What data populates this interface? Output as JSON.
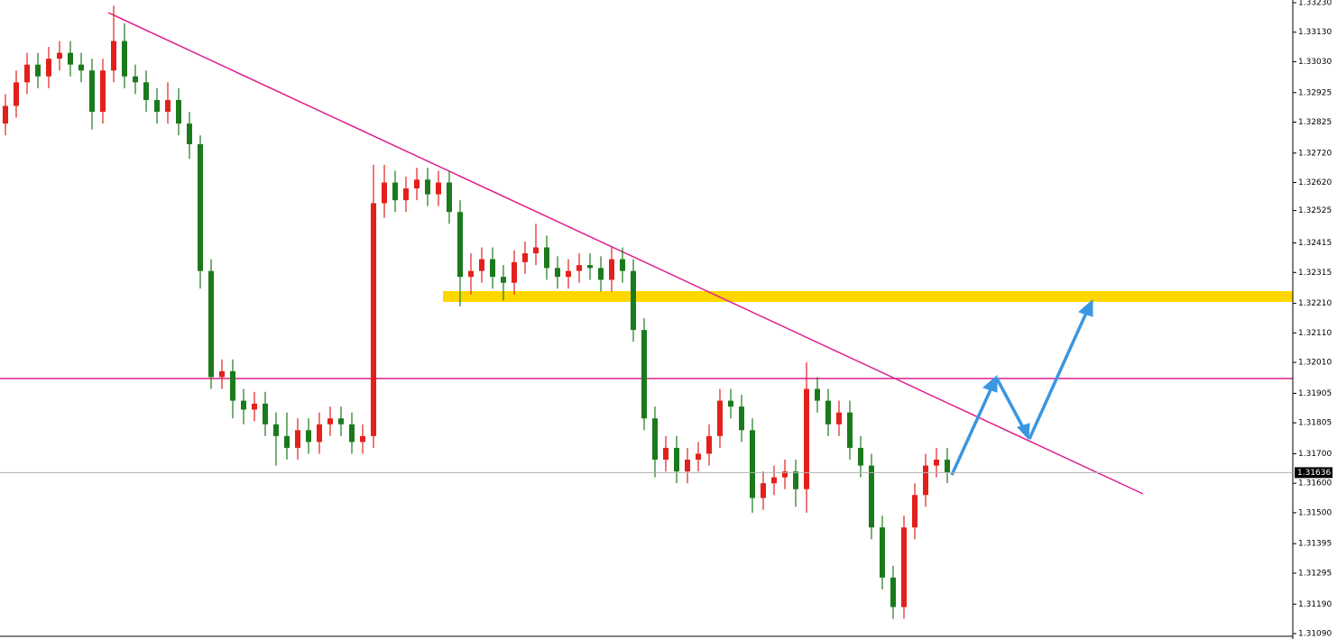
{
  "chart_data": {
    "type": "candlestick",
    "up_color": "#e3201b",
    "down_color": "#1b7a1b",
    "last_price": 1.31636,
    "ylim": [
      1.3109,
      1.3323
    ],
    "yticks": [
      {
        "value": 1.3323,
        "label": "1.33230"
      },
      {
        "value": 1.3313,
        "label": "1.33130"
      },
      {
        "value": 1.3303,
        "label": "1.33030"
      },
      {
        "value": 1.32925,
        "label": "1.32925"
      },
      {
        "value": 1.32825,
        "label": "1.32825"
      },
      {
        "value": 1.3272,
        "label": "1.32720"
      },
      {
        "value": 1.3262,
        "label": "1.32620"
      },
      {
        "value": 1.32525,
        "label": "1.32525"
      },
      {
        "value": 1.32415,
        "label": "1.32415"
      },
      {
        "value": 1.32315,
        "label": "1.32315"
      },
      {
        "value": 1.3221,
        "label": "1.32210"
      },
      {
        "value": 1.3211,
        "label": "1.32110"
      },
      {
        "value": 1.3201,
        "label": "1.32010"
      },
      {
        "value": 1.31905,
        "label": "1.31905"
      },
      {
        "value": 1.31805,
        "label": "1.31805"
      },
      {
        "value": 1.317,
        "label": "1.31700"
      },
      {
        "value": 1.316,
        "label": "1.31600"
      },
      {
        "value": 1.315,
        "label": "1.31500"
      },
      {
        "value": 1.31395,
        "label": "1.31395"
      },
      {
        "value": 1.31295,
        "label": "1.31295"
      },
      {
        "value": 1.3119,
        "label": "1.31190"
      },
      {
        "value": 1.3109,
        "label": "1.31090"
      }
    ],
    "open": [
      1.3282,
      1.3288,
      1.3296,
      1.3302,
      1.3298,
      1.3304,
      1.3306,
      1.3302,
      1.33,
      1.3286,
      1.33,
      1.331,
      1.3298,
      1.3296,
      1.329,
      1.3286,
      1.329,
      1.3282,
      1.3275,
      1.3232,
      1.3196,
      1.3198,
      1.3188,
      1.3185,
      1.3187,
      1.318,
      1.3176,
      1.3172,
      1.3178,
      1.3174,
      1.318,
      1.3182,
      1.318,
      1.3174,
      1.3176,
      1.3255,
      1.3262,
      1.3256,
      1.326,
      1.3263,
      1.3258,
      1.3262,
      1.3252,
      1.323,
      1.3232,
      1.3236,
      1.323,
      1.3228,
      1.3235,
      1.3238,
      1.324,
      1.3233,
      1.323,
      1.3232,
      1.3234,
      1.3233,
      1.3229,
      1.3236,
      1.3232,
      1.3212,
      1.3182,
      1.3168,
      1.3172,
      1.3164,
      1.3168,
      1.317,
      1.3176,
      1.3188,
      1.3186,
      1.3178,
      1.3155,
      1.316,
      1.3162,
      1.3164,
      1.3158,
      1.3192,
      1.3188,
      1.318,
      1.3184,
      1.3172,
      1.3166,
      1.3145,
      1.3128,
      1.3118,
      1.3145,
      1.3156,
      1.3166,
      1.3168
    ],
    "high": [
      1.3292,
      1.33,
      1.3306,
      1.3306,
      1.3308,
      1.331,
      1.331,
      1.3306,
      1.3304,
      1.3304,
      1.3322,
      1.3316,
      1.3302,
      1.33,
      1.3294,
      1.3296,
      1.3294,
      1.3286,
      1.3278,
      1.3236,
      1.3202,
      1.3202,
      1.3192,
      1.3191,
      1.3191,
      1.3184,
      1.3184,
      1.3182,
      1.3182,
      1.3184,
      1.3186,
      1.3186,
      1.3184,
      1.318,
      1.3268,
      1.3268,
      1.3266,
      1.3264,
      1.3267,
      1.3267,
      1.3266,
      1.3266,
      1.3256,
      1.3238,
      1.324,
      1.324,
      1.3234,
      1.3239,
      1.3242,
      1.3248,
      1.3244,
      1.3237,
      1.3236,
      1.3238,
      1.3238,
      1.3237,
      1.324,
      1.324,
      1.3236,
      1.3216,
      1.3186,
      1.3176,
      1.3176,
      1.3172,
      1.3174,
      1.318,
      1.3192,
      1.3192,
      1.319,
      1.3182,
      1.3164,
      1.3166,
      1.3168,
      1.3168,
      1.3201,
      1.3196,
      1.3192,
      1.3188,
      1.3188,
      1.3176,
      1.317,
      1.3149,
      1.3132,
      1.3149,
      1.316,
      1.317,
      1.3172,
      1.3172
    ],
    "low": [
      1.3278,
      1.3284,
      1.3292,
      1.3294,
      1.3294,
      1.33,
      1.3298,
      1.3296,
      1.328,
      1.3282,
      1.3296,
      1.3294,
      1.3292,
      1.3286,
      1.3282,
      1.3282,
      1.3278,
      1.327,
      1.3226,
      1.3192,
      1.3192,
      1.3182,
      1.318,
      1.3181,
      1.3176,
      1.3166,
      1.3168,
      1.3168,
      1.317,
      1.317,
      1.3176,
      1.3176,
      1.317,
      1.317,
      1.3172,
      1.325,
      1.3252,
      1.3252,
      1.3256,
      1.3254,
      1.3254,
      1.3248,
      1.322,
      1.3224,
      1.3228,
      1.3226,
      1.3222,
      1.3224,
      1.3231,
      1.3234,
      1.3229,
      1.3226,
      1.3226,
      1.3228,
      1.3229,
      1.3225,
      1.3225,
      1.3228,
      1.3208,
      1.3178,
      1.3162,
      1.3164,
      1.316,
      1.316,
      1.3164,
      1.3166,
      1.3172,
      1.3182,
      1.3174,
      1.315,
      1.3151,
      1.3156,
      1.3158,
      1.3152,
      1.315,
      1.3184,
      1.3176,
      1.3176,
      1.3168,
      1.3162,
      1.3141,
      1.3124,
      1.3114,
      1.3114,
      1.3141,
      1.3152,
      1.3162,
      1.316
    ],
    "close": [
      1.3288,
      1.3296,
      1.3302,
      1.3298,
      1.3304,
      1.3306,
      1.3302,
      1.33,
      1.3286,
      1.33,
      1.331,
      1.3298,
      1.3296,
      1.329,
      1.3286,
      1.329,
      1.3282,
      1.3275,
      1.3232,
      1.3196,
      1.3198,
      1.3188,
      1.3185,
      1.3187,
      1.318,
      1.3176,
      1.3172,
      1.3178,
      1.3174,
      1.318,
      1.3182,
      1.318,
      1.3174,
      1.3176,
      1.3255,
      1.3262,
      1.3256,
      1.326,
      1.3263,
      1.3258,
      1.3262,
      1.3252,
      1.323,
      1.3232,
      1.3236,
      1.323,
      1.3228,
      1.3235,
      1.3238,
      1.324,
      1.3233,
      1.323,
      1.3232,
      1.3234,
      1.3233,
      1.3229,
      1.3236,
      1.3232,
      1.3212,
      1.3182,
      1.3168,
      1.3172,
      1.3164,
      1.3168,
      1.317,
      1.3176,
      1.3188,
      1.3186,
      1.3178,
      1.3155,
      1.316,
      1.3162,
      1.3164,
      1.3158,
      1.3192,
      1.3188,
      1.318,
      1.3184,
      1.3172,
      1.3166,
      1.3145,
      1.3128,
      1.3118,
      1.3145,
      1.3156,
      1.3166,
      1.3168,
      1.31636
    ]
  }
}
